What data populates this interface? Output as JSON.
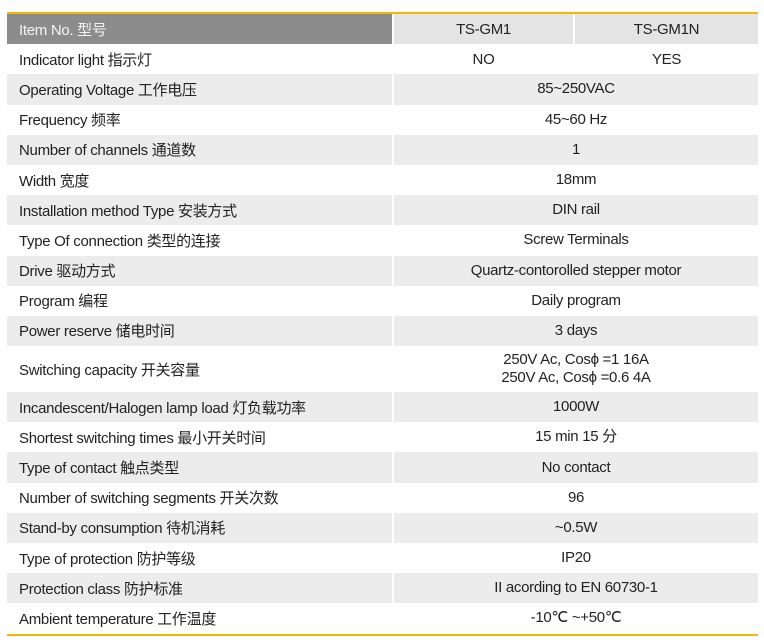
{
  "header": {
    "label": "Item No. 型号",
    "models": [
      "TS-GM1",
      "TS-GM1N"
    ]
  },
  "rows": [
    {
      "label": "Indicator light 指示灯",
      "values": [
        "NO",
        "YES"
      ]
    },
    {
      "label": "Operating Voltage 工作电压",
      "value": "85~250VAC"
    },
    {
      "label": "Frequency  频率",
      "value": "45~60 Hz"
    },
    {
      "label": "Number of channels 通道数",
      "value": "1"
    },
    {
      "label": "Width 宽度",
      "value": "18mm"
    },
    {
      "label": "Installation method Type 安装方式",
      "value": "DIN rail"
    },
    {
      "label": "Type Of connection 类型的连接",
      "value": "Screw Terminals"
    },
    {
      "label": "Drive 驱动方式",
      "value": "Quartz-contorolled stepper motor"
    },
    {
      "label": "Program 编程",
      "value": "Daily program"
    },
    {
      "label": "Power reserve 储电时间",
      "value": "3 days"
    },
    {
      "label": "Switching capacity 开关容量",
      "lines": [
        "250V Ac, Cosϕ =1 16A",
        "250V Ac, Cosϕ =0.6 4A"
      ]
    },
    {
      "label": "Incandescent/Halogen lamp load 灯负载功率",
      "value": "1000W"
    },
    {
      "label": "Shortest switching times 最小开关时间",
      "value": "15 min 15 分"
    },
    {
      "label": "Type of contact 触点类型",
      "value": "No contact"
    },
    {
      "label": "Number of switching segments 开关次数",
      "value": "96"
    },
    {
      "label": "Stand-by consumption 待机消耗",
      "value": "~0.5W"
    },
    {
      "label": "Type of protection 防护等级",
      "value": "IP20"
    },
    {
      "label": "Protection class 防护标准",
      "value": "II acording to EN 60730-1"
    },
    {
      "label": "Ambient temperature 工作温度",
      "value": "-10℃ ~+50℃"
    }
  ],
  "colors": {
    "accent": "#f5b800",
    "header_dark": "#8c8c8c",
    "row_gray": "#ececec"
  }
}
